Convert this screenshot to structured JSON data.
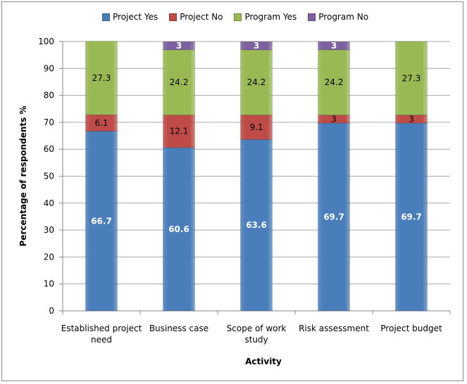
{
  "chart_data": {
    "type": "bar",
    "stacked": true,
    "title": "",
    "xlabel": "Activity",
    "ylabel": "Percentage of respondents %",
    "ylim": [
      0,
      100
    ],
    "yticks": [
      0,
      10,
      20,
      30,
      40,
      50,
      60,
      70,
      80,
      90,
      100
    ],
    "grid": true,
    "legend_position": "top",
    "categories": [
      [
        "Established project",
        "need"
      ],
      [
        "Business case"
      ],
      [
        "Scope of work",
        "study"
      ],
      [
        "Risk assessment"
      ],
      [
        "Project budget"
      ]
    ],
    "series": [
      {
        "name": "Project Yes",
        "color": "#4a7ebb",
        "label_color": "#ffffff",
        "values": [
          66.7,
          60.6,
          63.6,
          69.7,
          69.7
        ]
      },
      {
        "name": "Project No",
        "color": "#be4b48",
        "label_color": "#000000",
        "values": [
          6.1,
          12.1,
          9.1,
          3,
          3
        ]
      },
      {
        "name": "Program Yes",
        "color": "#98b954",
        "label_color": "#000000",
        "values": [
          27.3,
          24.2,
          24.2,
          24.2,
          27.3
        ]
      },
      {
        "name": "Program No",
        "color": "#7d60a0",
        "label_color": "#ffffff",
        "values": [
          0,
          3,
          3,
          3,
          0
        ]
      }
    ]
  }
}
